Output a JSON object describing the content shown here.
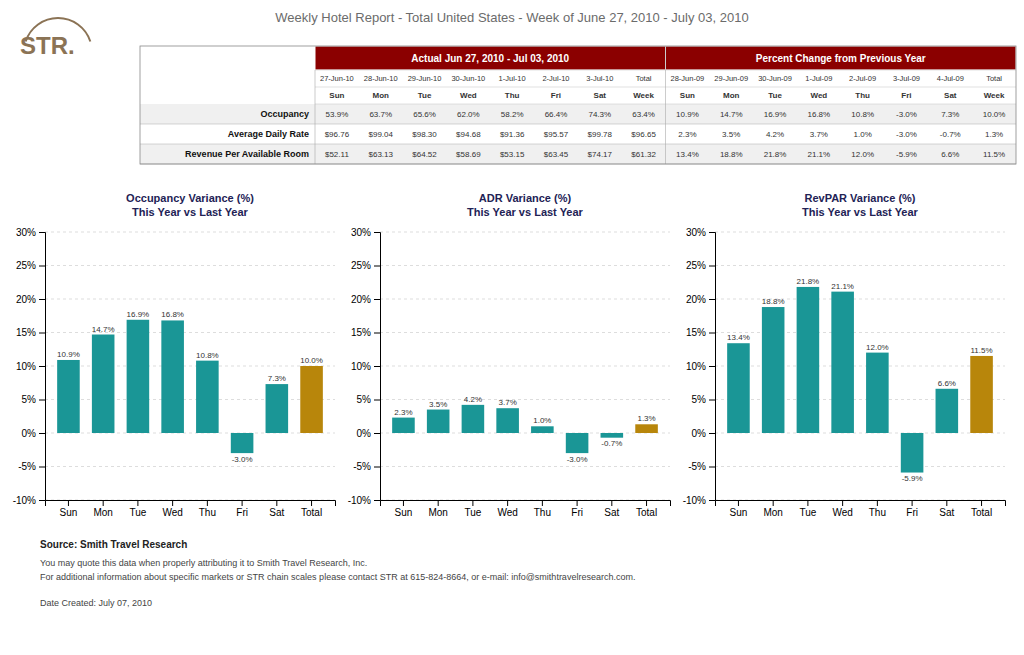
{
  "title": "Weekly Hotel Report - Total United States - Week of June 27, 2010 - July 03, 2010",
  "title_color": "#6b6b6b",
  "logo": {
    "text": "STR.",
    "color": "#8b7355"
  },
  "table": {
    "header_color": "#8b0000",
    "header_text_color": "#ffffff",
    "groups": [
      {
        "title": "Actual Jun 27, 2010 - Jul 03, 2010",
        "dates": [
          "27-Jun-10",
          "28-Jun-10",
          "29-Jun-10",
          "30-Jun-10",
          "1-Jul-10",
          "2-Jul-10",
          "3-Jul-10",
          "Total"
        ],
        "days": [
          "Sun",
          "Mon",
          "Tue",
          "Wed",
          "Thu",
          "Fri",
          "Sat",
          "Week"
        ]
      },
      {
        "title": "Percent Change from Previous Year",
        "dates": [
          "28-Jun-09",
          "29-Jun-09",
          "30-Jun-09",
          "1-Jul-09",
          "2-Jul-09",
          "3-Jul-09",
          "4-Jul-09",
          "Total"
        ],
        "days": [
          "Sun",
          "Mon",
          "Tue",
          "Wed",
          "Thu",
          "Fri",
          "Sat",
          "Week"
        ]
      }
    ],
    "rows": [
      {
        "label": "Occupancy",
        "actual": [
          "53.9%",
          "63.7%",
          "65.6%",
          "62.0%",
          "58.2%",
          "66.4%",
          "74.3%",
          "63.4%"
        ],
        "pct": [
          "10.9%",
          "14.7%",
          "16.9%",
          "16.8%",
          "10.8%",
          "-3.0%",
          "7.3%",
          "10.0%"
        ]
      },
      {
        "label": "Average Daily Rate",
        "actual": [
          "$96.76",
          "$99.04",
          "$98.30",
          "$94.68",
          "$91.36",
          "$95.57",
          "$99.78",
          "$96.65"
        ],
        "pct": [
          "2.3%",
          "3.5%",
          "4.2%",
          "3.7%",
          "1.0%",
          "-3.0%",
          "-0.7%",
          "1.3%"
        ]
      },
      {
        "label": "Revenue Per Available Room",
        "actual": [
          "$52.11",
          "$63.13",
          "$64.52",
          "$58.69",
          "$53.15",
          "$63.45",
          "$74.17",
          "$61.32"
        ],
        "pct": [
          "13.4%",
          "18.8%",
          "21.8%",
          "21.1%",
          "12.0%",
          "-5.9%",
          "6.6%",
          "11.5%"
        ]
      }
    ]
  },
  "chart_data": [
    {
      "type": "bar",
      "title": "Occupancy Variance (%)\nThis Year vs Last Year",
      "categories": [
        "Sun",
        "Mon",
        "Tue",
        "Wed",
        "Thu",
        "Fri",
        "Sat",
        "Total"
      ],
      "values": [
        10.9,
        14.7,
        16.9,
        16.8,
        10.8,
        -3.0,
        7.3,
        10.0
      ],
      "value_labels": [
        "10.9%",
        "14.7%",
        "16.9%",
        "16.8%",
        "10.8%",
        "-3.0%",
        "7.3%",
        "10.0%"
      ],
      "colors": [
        "#1a9696",
        "#1a9696",
        "#1a9696",
        "#1a9696",
        "#1a9696",
        "#1a9696",
        "#1a9696",
        "#b8860b"
      ],
      "data_labels": true,
      "ylim": [
        -10,
        30
      ],
      "yticks": [
        {
          "value": -10,
          "label": "-10%"
        },
        {
          "value": -5,
          "label": "-5%"
        },
        {
          "value": 0,
          "label": "0%"
        },
        {
          "value": 5,
          "label": "5%"
        },
        {
          "value": 10,
          "label": "10%"
        },
        {
          "value": 15,
          "label": "15%"
        },
        {
          "value": 20,
          "label": "20%"
        },
        {
          "value": 25,
          "label": "25%"
        },
        {
          "value": 30,
          "label": "30%"
        }
      ],
      "grid": true
    },
    {
      "type": "bar",
      "title": "ADR Variance (%)\nThis Year vs Last Year",
      "categories": [
        "Sun",
        "Mon",
        "Tue",
        "Wed",
        "Thu",
        "Fri",
        "Sat",
        "Total"
      ],
      "values": [
        2.3,
        3.5,
        4.2,
        3.7,
        1.0,
        -3.0,
        -0.7,
        1.3
      ],
      "value_labels": [
        "2.3%",
        "3.5%",
        "4.2%",
        "3.7%",
        "1.0%",
        "-3.0%",
        "-0.7%",
        "1.3%"
      ],
      "colors": [
        "#1a9696",
        "#1a9696",
        "#1a9696",
        "#1a9696",
        "#1a9696",
        "#1a9696",
        "#1a9696",
        "#b8860b"
      ],
      "data_labels": true,
      "ylim": [
        -10,
        30
      ],
      "yticks": [
        {
          "value": -10,
          "label": "-10%"
        },
        {
          "value": -5,
          "label": "-5%"
        },
        {
          "value": 0,
          "label": "0%"
        },
        {
          "value": 5,
          "label": "5%"
        },
        {
          "value": 10,
          "label": "10%"
        },
        {
          "value": 15,
          "label": "15%"
        },
        {
          "value": 20,
          "label": "20%"
        },
        {
          "value": 25,
          "label": "25%"
        },
        {
          "value": 30,
          "label": "30%"
        }
      ],
      "grid": true
    },
    {
      "type": "bar",
      "title": "RevPAR Variance (%)\nThis Year vs Last Year",
      "categories": [
        "Sun",
        "Mon",
        "Tue",
        "Wed",
        "Thu",
        "Fri",
        "Sat",
        "Total"
      ],
      "values": [
        13.4,
        18.8,
        21.8,
        21.1,
        12.0,
        -5.9,
        6.6,
        11.5
      ],
      "value_labels": [
        "13.4%",
        "18.8%",
        "21.8%",
        "21.1%",
        "12.0%",
        "-5.9%",
        "6.6%",
        "11.5%"
      ],
      "colors": [
        "#1a9696",
        "#1a9696",
        "#1a9696",
        "#1a9696",
        "#1a9696",
        "#1a9696",
        "#1a9696",
        "#b8860b"
      ],
      "data_labels": true,
      "ylim": [
        -10,
        30
      ],
      "yticks": [
        {
          "value": -10,
          "label": "-10%"
        },
        {
          "value": -5,
          "label": "-5%"
        },
        {
          "value": 0,
          "label": "0%"
        },
        {
          "value": 5,
          "label": "5%"
        },
        {
          "value": 10,
          "label": "10%"
        },
        {
          "value": 15,
          "label": "15%"
        },
        {
          "value": 20,
          "label": "20%"
        },
        {
          "value": 25,
          "label": "25%"
        },
        {
          "value": 30,
          "label": "30%"
        }
      ],
      "grid": true
    }
  ],
  "footer": {
    "source": "Source: Smith Travel Research",
    "notes": [
      "You may quote this data when properly attributing it to Smith Travel Research, Inc.",
      "For additional information about specific markets or STR chain scales please contact STR at 615-824-8664, or e-mail: info@smithtravelresearch.com."
    ],
    "date": "Date Created: July 07, 2010"
  }
}
